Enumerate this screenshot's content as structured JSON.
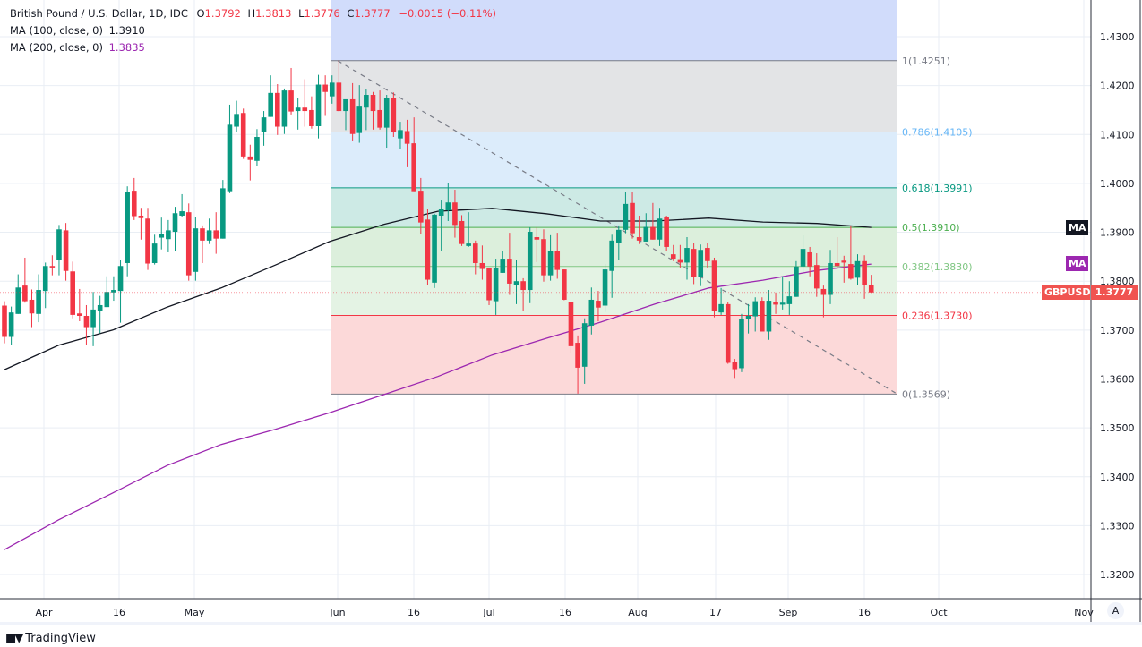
{
  "legend": {
    "title": "British Pound / U.S. Dollar, 1D, IDC",
    "o_label": "O",
    "o": "1.3792",
    "h_label": "H",
    "h": "1.3813",
    "l_label": "L",
    "l": "1.3776",
    "c_label": "C",
    "c": "1.3777",
    "change": "−0.0015 (−0.11%)",
    "ma100_label": "MA (100, close, 0)",
    "ma100_value": "1.3910",
    "ma200_label": "MA (200, close, 0)",
    "ma200_value": "1.3835"
  },
  "badges": {
    "ma100": "MA",
    "ma200": "MA",
    "symbol": "GBPUSD",
    "last_price": "1.3777"
  },
  "colors": {
    "up": "#089981",
    "down": "#f23645",
    "ma100": "#131722",
    "ma200": "#9c27b0"
  },
  "footer": {
    "brand": "TradingView",
    "auto_button": "A"
  },
  "chart_data": {
    "type": "candlestick",
    "title": "British Pound / U.S. Dollar, 1D, IDC",
    "ylim": [
      1.315,
      1.437
    ],
    "y_ticks": [
      "1.4300",
      "1.4200",
      "1.4100",
      "1.4000",
      "1.3900",
      "1.3800",
      "1.3700",
      "1.3600",
      "1.3500",
      "1.3400",
      "1.3300",
      "1.3200"
    ],
    "x_ticks": [
      "Apr",
      "16",
      "May",
      "Jun",
      "16",
      "Jul",
      "16",
      "Aug",
      "17",
      "Sep",
      "16",
      "Oct",
      "Nov"
    ],
    "grid": true,
    "ohlc": [
      [
        1.375,
        1.3759,
        1.3673,
        1.3686
      ],
      [
        1.3686,
        1.3748,
        1.367,
        1.3736
      ],
      [
        1.3733,
        1.3814,
        1.3733,
        1.3787
      ],
      [
        1.3791,
        1.3848,
        1.3756,
        1.3759
      ],
      [
        1.3762,
        1.3783,
        1.3706,
        1.3734
      ],
      [
        1.3733,
        1.3814,
        1.3716,
        1.3782
      ],
      [
        1.378,
        1.3838,
        1.3745,
        1.3831
      ],
      [
        1.3831,
        1.3853,
        1.3812,
        1.3828
      ],
      [
        1.3843,
        1.3915,
        1.3812,
        1.3906
      ],
      [
        1.3904,
        1.3919,
        1.3801,
        1.3821
      ],
      [
        1.382,
        1.384,
        1.3724,
        1.3731
      ],
      [
        1.3734,
        1.3784,
        1.3718,
        1.3729
      ],
      [
        1.3729,
        1.3751,
        1.3669,
        1.3706
      ],
      [
        1.3706,
        1.3778,
        1.3667,
        1.3742
      ],
      [
        1.374,
        1.377,
        1.3694,
        1.3751
      ],
      [
        1.3747,
        1.381,
        1.3747,
        1.3778
      ],
      [
        1.3777,
        1.381,
        1.376,
        1.3782
      ],
      [
        1.378,
        1.3844,
        1.3715,
        1.3831
      ],
      [
        1.3837,
        1.3994,
        1.381,
        1.3983
      ],
      [
        1.3985,
        1.4011,
        1.3925,
        1.3933
      ],
      [
        1.3934,
        1.395,
        1.3885,
        1.3929
      ],
      [
        1.3928,
        1.395,
        1.3823,
        1.3836
      ],
      [
        1.3837,
        1.3895,
        1.3834,
        1.3877
      ],
      [
        1.3889,
        1.393,
        1.3865,
        1.3897
      ],
      [
        1.3886,
        1.3925,
        1.3859,
        1.3904
      ],
      [
        1.3901,
        1.3952,
        1.3861,
        1.3939
      ],
      [
        1.3934,
        1.3978,
        1.3931,
        1.3943
      ],
      [
        1.3941,
        1.3959,
        1.3801,
        1.3812
      ],
      [
        1.3819,
        1.3932,
        1.3801,
        1.3908
      ],
      [
        1.3908,
        1.3914,
        1.3837,
        1.3883
      ],
      [
        1.3883,
        1.3928,
        1.3876,
        1.3904
      ],
      [
        1.3904,
        1.3941,
        1.3856,
        1.3887
      ],
      [
        1.3887,
        1.4007,
        1.3887,
        1.399
      ],
      [
        1.3984,
        1.4161,
        1.398,
        1.412
      ],
      [
        1.4116,
        1.4169,
        1.4105,
        1.4142
      ],
      [
        1.4144,
        1.4153,
        1.405,
        1.4055
      ],
      [
        1.4055,
        1.4079,
        1.4006,
        1.4048
      ],
      [
        1.4046,
        1.4111,
        1.4035,
        1.4095
      ],
      [
        1.4106,
        1.4148,
        1.4077,
        1.4135
      ],
      [
        1.4136,
        1.4221,
        1.4136,
        1.4185
      ],
      [
        1.4185,
        1.4203,
        1.4099,
        1.4116
      ],
      [
        1.4116,
        1.4194,
        1.4101,
        1.419
      ],
      [
        1.419,
        1.4236,
        1.4141,
        1.4147
      ],
      [
        1.4148,
        1.4174,
        1.411,
        1.4155
      ],
      [
        1.4155,
        1.4213,
        1.4116,
        1.4148
      ],
      [
        1.415,
        1.4178,
        1.4112,
        1.4117
      ],
      [
        1.4117,
        1.4222,
        1.4092,
        1.4202
      ],
      [
        1.4202,
        1.4221,
        1.4138,
        1.4187
      ],
      [
        1.4178,
        1.4221,
        1.4163,
        1.4206
      ],
      [
        1.4206,
        1.4252,
        1.4147,
        1.4148
      ],
      [
        1.4148,
        1.4172,
        1.4109,
        1.4172
      ],
      [
        1.4172,
        1.4205,
        1.4086,
        1.4101
      ],
      [
        1.4103,
        1.4201,
        1.4083,
        1.4157
      ],
      [
        1.4155,
        1.4192,
        1.4109,
        1.4181
      ],
      [
        1.4181,
        1.4187,
        1.411,
        1.4148
      ],
      [
        1.415,
        1.419,
        1.411,
        1.4114
      ],
      [
        1.4114,
        1.4181,
        1.4073,
        1.4175
      ],
      [
        1.4175,
        1.4186,
        1.4095,
        1.4106
      ],
      [
        1.4092,
        1.4126,
        1.407,
        1.4109
      ],
      [
        1.4107,
        1.413,
        1.4033,
        1.4081
      ],
      [
        1.4082,
        1.4135,
        1.3984,
        1.3984
      ],
      [
        1.3985,
        1.4011,
        1.3896,
        1.392
      ],
      [
        1.3926,
        1.3947,
        1.3792,
        1.3803
      ],
      [
        1.3797,
        1.3938,
        1.3786,
        1.3936
      ],
      [
        1.3934,
        1.3965,
        1.3861,
        1.3947
      ],
      [
        1.3945,
        1.4001,
        1.3923,
        1.3961
      ],
      [
        1.3961,
        1.3987,
        1.3889,
        1.3915
      ],
      [
        1.3923,
        1.3935,
        1.3872,
        1.3876
      ],
      [
        1.3872,
        1.3941,
        1.387,
        1.3877
      ],
      [
        1.3877,
        1.3883,
        1.3814,
        1.3837
      ],
      [
        1.3837,
        1.3873,
        1.3803,
        1.3825
      ],
      [
        1.3826,
        1.3826,
        1.3751,
        1.3761
      ],
      [
        1.3759,
        1.3846,
        1.3731,
        1.3826
      ],
      [
        1.3817,
        1.3862,
        1.3817,
        1.3846
      ],
      [
        1.3846,
        1.3899,
        1.3772,
        1.3795
      ],
      [
        1.3793,
        1.3843,
        1.3753,
        1.38
      ],
      [
        1.38,
        1.3806,
        1.374,
        1.3782
      ],
      [
        1.3782,
        1.391,
        1.3755,
        1.3901
      ],
      [
        1.389,
        1.391,
        1.3839,
        1.3885
      ],
      [
        1.3886,
        1.3906,
        1.3799,
        1.3812
      ],
      [
        1.3812,
        1.3894,
        1.3801,
        1.3861
      ],
      [
        1.3862,
        1.3899,
        1.3805,
        1.3823
      ],
      [
        1.3824,
        1.3824,
        1.3761,
        1.3762
      ],
      [
        1.3758,
        1.3758,
        1.3654,
        1.3667
      ],
      [
        1.3674,
        1.3689,
        1.357,
        1.3623
      ],
      [
        1.3625,
        1.3724,
        1.359,
        1.3714
      ],
      [
        1.3709,
        1.3787,
        1.3691,
        1.3762
      ],
      [
        1.376,
        1.378,
        1.3718,
        1.3746
      ],
      [
        1.375,
        1.3835,
        1.3737,
        1.3824
      ],
      [
        1.3821,
        1.3895,
        1.3766,
        1.3883
      ],
      [
        1.3878,
        1.3914,
        1.3843,
        1.3905
      ],
      [
        1.3905,
        1.3983,
        1.3898,
        1.3958
      ],
      [
        1.396,
        1.3983,
        1.3887,
        1.3898
      ],
      [
        1.389,
        1.3934,
        1.3876,
        1.3883
      ],
      [
        1.3881,
        1.3939,
        1.3881,
        1.3911
      ],
      [
        1.3911,
        1.396,
        1.3885,
        1.3885
      ],
      [
        1.3885,
        1.395,
        1.3872,
        1.3928
      ],
      [
        1.3931,
        1.3934,
        1.3862,
        1.387
      ],
      [
        1.3855,
        1.3874,
        1.3841,
        1.3846
      ],
      [
        1.3845,
        1.3874,
        1.3828,
        1.3838
      ],
      [
        1.3838,
        1.389,
        1.3803,
        1.3868
      ],
      [
        1.3866,
        1.3879,
        1.3794,
        1.3808
      ],
      [
        1.3808,
        1.3875,
        1.379,
        1.3864
      ],
      [
        1.3868,
        1.3879,
        1.3828,
        1.3841
      ],
      [
        1.3842,
        1.3848,
        1.3726,
        1.3739
      ],
      [
        1.3736,
        1.3786,
        1.3731,
        1.3753
      ],
      [
        1.3753,
        1.3758,
        1.3631,
        1.3633
      ],
      [
        1.3634,
        1.3641,
        1.3602,
        1.362
      ],
      [
        1.3622,
        1.3733,
        1.3614,
        1.3722
      ],
      [
        1.3722,
        1.3753,
        1.3693,
        1.3729
      ],
      [
        1.3728,
        1.3767,
        1.3697,
        1.3759
      ],
      [
        1.376,
        1.3767,
        1.3697,
        1.3697
      ],
      [
        1.3697,
        1.3782,
        1.368,
        1.376
      ],
      [
        1.3758,
        1.3777,
        1.3733,
        1.3752
      ],
      [
        1.3752,
        1.381,
        1.3742,
        1.3756
      ],
      [
        1.3753,
        1.38,
        1.3731,
        1.3769
      ],
      [
        1.3768,
        1.3841,
        1.3768,
        1.383
      ],
      [
        1.383,
        1.3894,
        1.3817,
        1.3866
      ],
      [
        1.3859,
        1.387,
        1.381,
        1.383
      ],
      [
        1.3833,
        1.3857,
        1.3768,
        1.3785
      ],
      [
        1.3784,
        1.3791,
        1.3726,
        1.3772
      ],
      [
        1.3772,
        1.3864,
        1.3753,
        1.3837
      ],
      [
        1.3837,
        1.389,
        1.3827,
        1.3831
      ],
      [
        1.3842,
        1.3852,
        1.3797,
        1.3838
      ],
      [
        1.3835,
        1.3914,
        1.3803,
        1.3805
      ],
      [
        1.3807,
        1.3855,
        1.3792,
        1.3841
      ],
      [
        1.3841,
        1.3853,
        1.3764,
        1.3792
      ],
      [
        1.3792,
        1.3813,
        1.3776,
        1.3777
      ]
    ],
    "ma100": [
      1.3619,
      1.3669,
      1.37,
      1.3747,
      1.3786,
      1.3833,
      1.3881,
      1.3916,
      1.3943,
      1.3949,
      1.3938,
      1.3923,
      1.3923,
      1.3929,
      1.3921,
      1.3918,
      1.391
    ],
    "ma200": [
      1.3251,
      1.3312,
      1.3367,
      1.3423,
      1.3466,
      1.3497,
      1.3531,
      1.3568,
      1.3605,
      1.3649,
      1.3683,
      1.3716,
      1.3753,
      1.3786,
      1.3802,
      1.3822,
      1.3835
    ],
    "fib_levels": [
      {
        "ratio": "1",
        "price": 1.4251,
        "label": "1(1.4251)",
        "color": "#787b86",
        "fill": "#e3e4e6"
      },
      {
        "ratio": "0.786",
        "price": 1.4105,
        "label": "0.786(1.4105)",
        "color": "#64b5f6",
        "fill": "#dcecfb"
      },
      {
        "ratio": "0.618",
        "price": 1.3991,
        "label": "0.618(1.3991)",
        "color": "#089981",
        "fill": "#cdeae5"
      },
      {
        "ratio": "0.5",
        "price": 1.391,
        "label": "0.5(1.3910)",
        "color": "#4caf50",
        "fill": "#dcefdc"
      },
      {
        "ratio": "0.382",
        "price": 1.383,
        "label": "0.382(1.3830)",
        "color": "#81c784",
        "fill": "#e4f3e4"
      },
      {
        "ratio": "0.236",
        "price": 1.373,
        "label": "0.236(1.3730)",
        "color": "#f23645",
        "fill": "#fcd9d9"
      },
      {
        "ratio": "0",
        "price": 1.3569,
        "label": "0(1.3569)",
        "color": "#787b86",
        "fill": null
      }
    ],
    "fib_upper_fill": "#d1dcfb",
    "trendline": {
      "from": 1.4251,
      "to": 1.3569,
      "style": "dashed"
    }
  }
}
